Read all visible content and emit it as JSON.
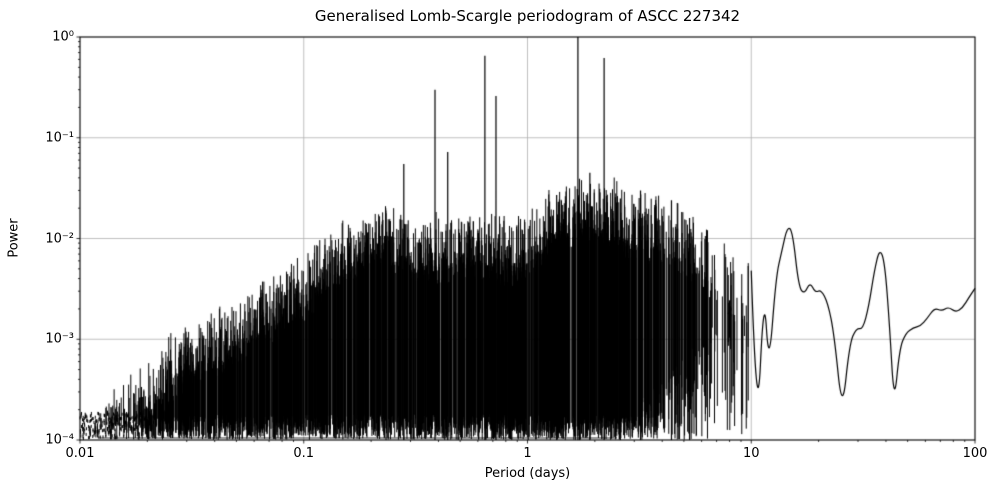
{
  "chart_data": {
    "type": "line",
    "title": "Generalised Lomb-Scargle periodogram of ASCC 227342",
    "xlabel": "Period (days)",
    "ylabel": "Power",
    "x_scale": "log",
    "y_scale": "log",
    "xlim": [
      0.01,
      100
    ],
    "ylim": [
      0.0001,
      1.0
    ],
    "x_tick_labels": [
      "0.01",
      "0.1",
      "1",
      "10",
      "100"
    ],
    "y_tick_labels": [
      "10⁰",
      "10⁻¹",
      "10⁻²",
      "10⁻³",
      "10⁻⁴"
    ],
    "grid": true,
    "grid_color": "#b0b0b0",
    "line_color": "#000000",
    "noise_floor": 0.0001,
    "main_peaks": [
      [
        0.28,
        0.055
      ],
      [
        0.386,
        0.3
      ],
      [
        0.44,
        0.072
      ],
      [
        0.645,
        0.65
      ],
      [
        0.723,
        0.26
      ],
      [
        1.35,
        0.027
      ],
      [
        1.68,
        1.0
      ],
      [
        1.9,
        0.045
      ],
      [
        2.2,
        0.62
      ],
      [
        2.6,
        0.025
      ],
      [
        3.2,
        0.03
      ],
      [
        4.4,
        0.024
      ],
      [
        5.3,
        0.016
      ]
    ],
    "noise_envelope": [
      [
        0.01,
        0.00012
      ],
      [
        0.014,
        0.00025
      ],
      [
        0.02,
        0.0004
      ],
      [
        0.03,
        0.0011
      ],
      [
        0.045,
        0.0016
      ],
      [
        0.065,
        0.0028
      ],
      [
        0.09,
        0.0045
      ],
      [
        0.12,
        0.007
      ],
      [
        0.16,
        0.012
      ],
      [
        0.22,
        0.02
      ],
      [
        0.3,
        0.013
      ],
      [
        0.42,
        0.012
      ],
      [
        0.55,
        0.014
      ],
      [
        0.7,
        0.012
      ],
      [
        0.9,
        0.011
      ],
      [
        1.2,
        0.02
      ],
      [
        1.7,
        0.03
      ],
      [
        2.3,
        0.028
      ],
      [
        3.0,
        0.02
      ],
      [
        4.0,
        0.02
      ],
      [
        5.5,
        0.013
      ],
      [
        7.0,
        0.008
      ],
      [
        8.5,
        0.0045
      ],
      [
        10.0,
        0.005
      ]
    ],
    "spikes": {
      "logp_min": -2.0,
      "logp_max": 1.0,
      "count": 2600,
      "seed": 1337,
      "typ_fraction": 0.35,
      "peak_exponent": 2.2,
      "sparse_start_logp": 0.45,
      "sparse_end_weight": 0.1
    },
    "smooth_tail": [
      [
        10.0,
        0.0048
      ],
      [
        10.6,
        0.0001
      ],
      [
        11.4,
        0.0032
      ],
      [
        12.0,
        0.0005
      ],
      [
        12.9,
        0.0042
      ],
      [
        13.7,
        0.0075
      ],
      [
        14.5,
        0.0132
      ],
      [
        15.3,
        0.0118
      ],
      [
        16.3,
        0.0033
      ],
      [
        17.3,
        0.0028
      ],
      [
        18.3,
        0.0037
      ],
      [
        19.3,
        0.0029
      ],
      [
        20.5,
        0.0031
      ],
      [
        22.0,
        0.0023
      ],
      [
        23.5,
        0.0011
      ],
      [
        25.5,
        0.00018
      ],
      [
        27.5,
        0.0009
      ],
      [
        29.5,
        0.0013
      ],
      [
        31.5,
        0.00125
      ],
      [
        33.5,
        0.0021
      ],
      [
        35.5,
        0.0048
      ],
      [
        37.5,
        0.008
      ],
      [
        39.5,
        0.0058
      ],
      [
        41.5,
        0.0014
      ],
      [
        43.5,
        0.00022
      ],
      [
        46.0,
        0.0008
      ],
      [
        49.0,
        0.00115
      ],
      [
        53.0,
        0.0013
      ],
      [
        57.0,
        0.00135
      ],
      [
        61.0,
        0.0016
      ],
      [
        66.0,
        0.00205
      ],
      [
        71.0,
        0.0019
      ],
      [
        76.0,
        0.0021
      ],
      [
        82.0,
        0.00185
      ],
      [
        88.0,
        0.00205
      ],
      [
        94.0,
        0.0026
      ],
      [
        100.0,
        0.0032
      ]
    ]
  }
}
